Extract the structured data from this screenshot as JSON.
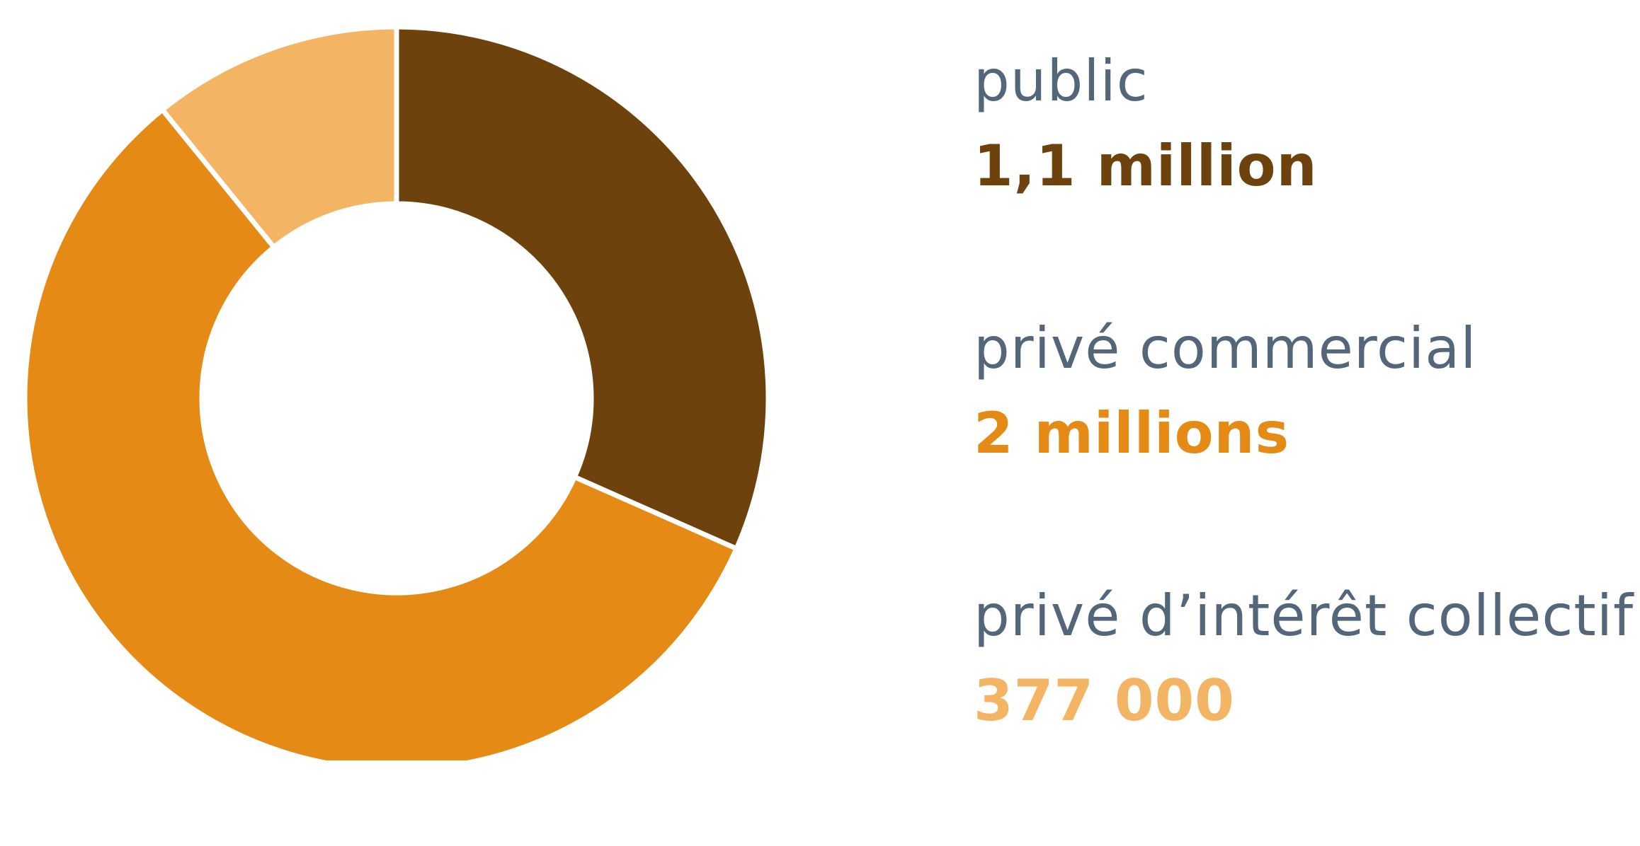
{
  "chart_data": {
    "type": "pie",
    "style": "donut",
    "slices": [
      {
        "label": "public",
        "display_value": "1,1 million",
        "value": 1100000,
        "color": "#6d420d"
      },
      {
        "label": "privé commercial",
        "display_value": "2 millions",
        "value": 2000000,
        "color": "#e48a15"
      },
      {
        "label": "privé d’intérêt collectif",
        "display_value": "377 000",
        "value": 377000,
        "color": "#f3b463"
      }
    ],
    "legend_placement": "right"
  }
}
